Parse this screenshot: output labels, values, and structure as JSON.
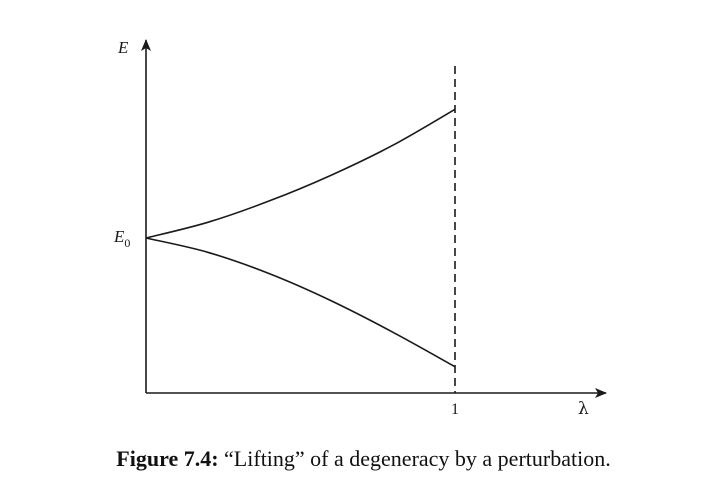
{
  "figure": {
    "y_axis_label": "E",
    "x_axis_label": "λ",
    "y_tick_label": "E",
    "y_tick_subscript": "0",
    "x_tick_label": "1",
    "caption_label": "Figure 7.4:",
    "caption_text": " “Lifting” of a degeneracy by a perturbation."
  },
  "chart_data": {
    "type": "line",
    "xlabel": "λ",
    "ylabel": "E",
    "xlim": [
      0,
      1.5
    ],
    "ylim": [
      -1.1,
      1.4
    ],
    "grid": false,
    "x_ticks": [
      1
    ],
    "y_ticks": [
      {
        "value": 0,
        "label": "E0"
      }
    ],
    "marker_line": {
      "x": 1,
      "style": "dashed"
    },
    "series": [
      {
        "x": [
          0,
          0.2,
          0.4,
          0.6,
          0.8,
          1.0
        ],
        "values": [
          0,
          0.11,
          0.26,
          0.44,
          0.65,
          0.9
        ]
      },
      {
        "x": [
          0,
          0.2,
          0.4,
          0.6,
          0.8,
          1.0
        ],
        "values": [
          0,
          -0.1,
          -0.25,
          -0.44,
          -0.66,
          -0.9
        ]
      }
    ]
  }
}
